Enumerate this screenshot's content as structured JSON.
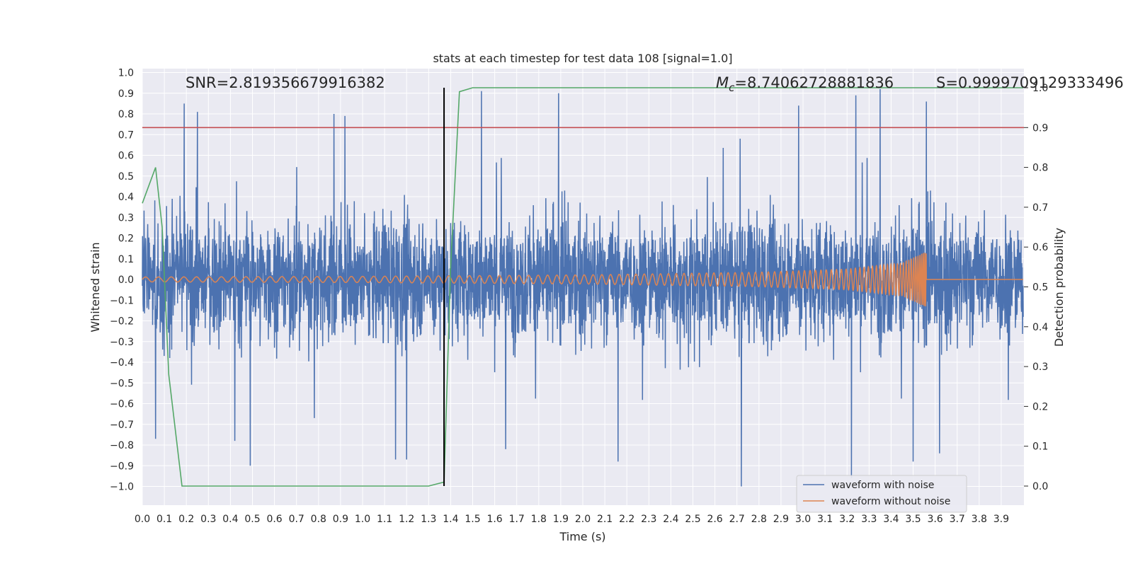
{
  "chart_data": {
    "type": "line",
    "title": "stats at each timestep for test data 108 [signal=1.0]",
    "xlabel": "Time (s)",
    "ylabel": "Whitened strain",
    "y2label": "Detection probability",
    "xlim": [
      0.0,
      4.0
    ],
    "ylim": [
      -1.09,
      1.0
    ],
    "y2lim": [
      -0.05,
      1.0
    ],
    "x_ticks": [
      "0.0",
      "0.1",
      "0.2",
      "0.3",
      "0.4",
      "0.5",
      "0.6",
      "0.7",
      "0.8",
      "0.9",
      "1.0",
      "1.1",
      "1.2",
      "1.3",
      "1.4",
      "1.5",
      "1.6",
      "1.7",
      "1.8",
      "1.9",
      "2.0",
      "2.1",
      "2.2",
      "2.3",
      "2.4",
      "2.5",
      "2.6",
      "2.7",
      "2.8",
      "2.9",
      "3.0",
      "3.1",
      "3.2",
      "3.3",
      "3.4",
      "3.5",
      "3.6",
      "3.7",
      "3.8",
      "3.9"
    ],
    "y_ticks": [
      "1.0",
      "0.9",
      "0.8",
      "0.7",
      "0.6",
      "0.5",
      "0.4",
      "0.3",
      "0.2",
      "0.1",
      "0.0",
      "−0.1",
      "−0.2",
      "−0.3",
      "−0.4",
      "−0.5",
      "−0.6",
      "−0.7",
      "−0.8",
      "−0.9",
      "−1.0"
    ],
    "y2_ticks": [
      "1.0",
      "0.9",
      "0.8",
      "0.7",
      "0.6",
      "0.5",
      "0.4",
      "0.3",
      "0.2",
      "0.1",
      "0.0"
    ],
    "annotations": {
      "snr": "SNR=2.819356679916382",
      "mc_symbol": "M",
      "mc_sub": "c",
      "mc_value": "=8.74062728881836",
      "s": "S=0.9999709129333496"
    },
    "threshold": {
      "axis": "y2",
      "value": 0.9,
      "color": "#c44e52"
    },
    "marker_line": {
      "x": 1.37,
      "y2_from": 0.0,
      "y2_to": 1.0,
      "color": "#000000"
    },
    "legend": [
      {
        "label": "waveform with noise",
        "color": "#4c72b0"
      },
      {
        "label": "waveform without noise",
        "color": "#dd8452"
      }
    ],
    "series": [
      {
        "name": "waveform with noise",
        "color": "#4c72b0",
        "description": "dense whitened noisy strain, values mostly within ±0.5 with spikes",
        "envelope_y_range": [
          -1.0,
          0.92
        ],
        "spikes": [
          {
            "x": 0.06,
            "y": -0.77
          },
          {
            "x": 0.19,
            "y": 0.85
          },
          {
            "x": 0.25,
            "y": 0.81
          },
          {
            "x": 0.42,
            "y": -0.78
          },
          {
            "x": 0.49,
            "y": -0.9
          },
          {
            "x": 0.87,
            "y": 0.8
          },
          {
            "x": 0.92,
            "y": 0.79
          },
          {
            "x": 1.15,
            "y": -0.87
          },
          {
            "x": 1.2,
            "y": -0.87
          },
          {
            "x": 1.54,
            "y": 0.91
          },
          {
            "x": 1.65,
            "y": -0.82
          },
          {
            "x": 1.89,
            "y": 0.9
          },
          {
            "x": 2.16,
            "y": -0.88
          },
          {
            "x": 2.72,
            "y": -1.0
          },
          {
            "x": 2.98,
            "y": 0.84
          },
          {
            "x": 3.22,
            "y": -0.96
          },
          {
            "x": 3.24,
            "y": 0.89
          },
          {
            "x": 3.35,
            "y": 0.92
          },
          {
            "x": 3.5,
            "y": -0.88
          },
          {
            "x": 3.56,
            "y": 0.86
          },
          {
            "x": 3.62,
            "y": 0.85
          },
          {
            "x": 3.62,
            "y": -0.84
          }
        ]
      },
      {
        "name": "waveform without noise",
        "color": "#dd8452",
        "description": "chirp signal, amplitude grows up to ~0.13 and ends at ~3.55 s",
        "amplitude_points": [
          [
            0.0,
            0.012
          ],
          [
            1.0,
            0.015
          ],
          [
            2.0,
            0.022
          ],
          [
            2.8,
            0.035
          ],
          [
            3.2,
            0.05
          ],
          [
            3.45,
            0.08
          ],
          [
            3.55,
            0.13
          ]
        ],
        "end_x": 3.56
      },
      {
        "name": "detection probability",
        "axis": "y2",
        "color": "#55a868",
        "x": [
          0.0,
          0.06,
          0.09,
          0.12,
          0.18,
          0.25,
          0.5,
          0.6,
          1.0,
          1.3,
          1.37,
          1.4,
          1.44,
          1.5,
          4.0
        ],
        "values": [
          0.71,
          0.8,
          0.65,
          0.28,
          0.0,
          0.0,
          0.0,
          0.0,
          0.0,
          0.0,
          0.01,
          0.55,
          0.99,
          1.0,
          1.0
        ]
      }
    ]
  }
}
